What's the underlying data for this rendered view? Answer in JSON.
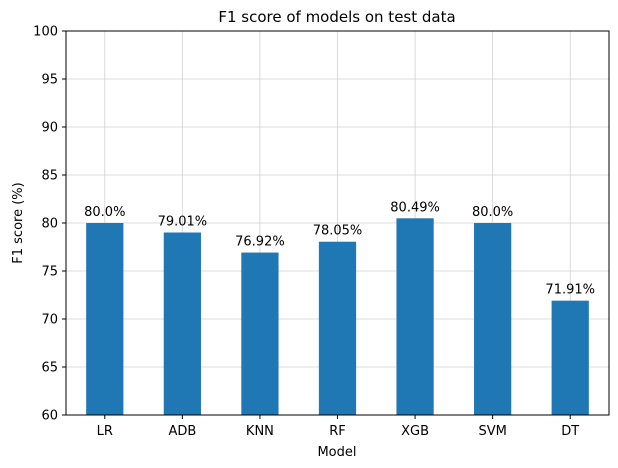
{
  "chart_data": {
    "type": "bar",
    "title": "F1 score of models on test data",
    "xlabel": "Model",
    "ylabel": "F1 score (%)",
    "categories": [
      "LR",
      "ADB",
      "KNN",
      "RF",
      "XGB",
      "SVM",
      "DT"
    ],
    "values": [
      80.0,
      79.01,
      76.92,
      78.05,
      80.49,
      80.0,
      71.91
    ],
    "data_labels": [
      "80.0%",
      "79.01%",
      "76.92%",
      "78.05%",
      "80.49%",
      "80.0%",
      "71.91%"
    ],
    "ylim": [
      60,
      100
    ],
    "yticks": [
      60,
      65,
      70,
      75,
      80,
      85,
      90,
      95,
      100
    ],
    "grid": true,
    "bar_color": "#1f77b4"
  }
}
